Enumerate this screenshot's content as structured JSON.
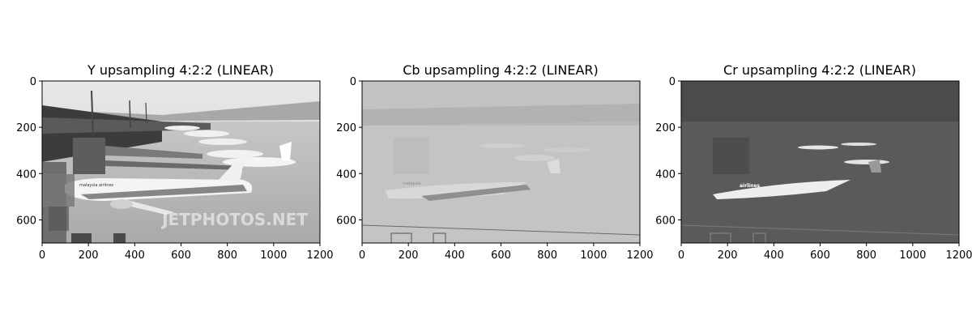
{
  "chart_data": [
    {
      "type": "image",
      "title": "Y upsampling  4:2:2 (LINEAR)",
      "xlim": [
        0,
        1200
      ],
      "ylim": [
        700,
        0
      ],
      "xticks": [
        0,
        200,
        400,
        600,
        800,
        1000,
        1200
      ],
      "yticks": [
        0,
        200,
        400,
        600
      ],
      "image": {
        "colormap": "gray",
        "watermark": "JETPHOTOS.NET",
        "livery_text": "malaysia airlines"
      }
    },
    {
      "type": "image",
      "title": "Cb upsampling  4:2:2 (LINEAR)",
      "xlim": [
        0,
        1200
      ],
      "ylim": [
        700,
        0
      ],
      "xticks": [
        0,
        200,
        400,
        600,
        800,
        1000,
        1200
      ],
      "yticks": [
        0,
        200,
        400,
        600
      ],
      "image": {
        "colormap": "gray",
        "livery_text": "malaysia"
      }
    },
    {
      "type": "image",
      "title": "Cr upsampling  4:2:2 (LINEAR)",
      "xlim": [
        0,
        1200
      ],
      "ylim": [
        700,
        0
      ],
      "xticks": [
        0,
        200,
        400,
        600,
        800,
        1000,
        1200
      ],
      "yticks": [
        0,
        200,
        400,
        600
      ],
      "image": {
        "colormap": "gray",
        "livery_text": "airlines"
      }
    }
  ],
  "colors": {
    "y_sky": "#dcdcdc",
    "y_tarmac": "#bdbdbd",
    "y_terminal": "#555555",
    "y_plane": "#f2f2f2",
    "cb_base": "#b8b8b8",
    "cb_light": "#cacaca",
    "cb_dark": "#9a9a9a",
    "cr_base": "#555555",
    "cr_dark": "#3f3f3f",
    "cr_light": "#f0f0f0"
  }
}
